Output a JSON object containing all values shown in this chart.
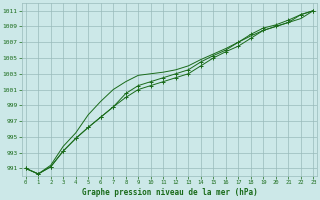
{
  "xlabel": "Graphe pression niveau de la mer (hPa)",
  "background_color": "#cce8e8",
  "grid_color": "#99bbbb",
  "line_color": "#1a6b1a",
  "x": [
    0,
    1,
    2,
    3,
    4,
    5,
    6,
    7,
    8,
    9,
    10,
    11,
    12,
    13,
    14,
    15,
    16,
    17,
    18,
    19,
    20,
    21,
    22,
    23
  ],
  "line1": [
    991.0,
    990.3,
    991.2,
    993.2,
    994.8,
    996.2,
    997.5,
    998.8,
    1000.0,
    1001.0,
    1001.5,
    1002.0,
    1002.5,
    1003.0,
    1004.0,
    1005.0,
    1005.8,
    1006.5,
    1007.5,
    1008.5,
    1009.0,
    1009.5,
    1010.5,
    1011.0
  ],
  "line2": [
    991.0,
    990.3,
    991.2,
    993.2,
    994.8,
    996.2,
    997.5,
    998.8,
    1000.5,
    1001.5,
    1002.0,
    1002.5,
    1003.0,
    1003.5,
    1004.5,
    1005.3,
    1006.0,
    1007.0,
    1008.0,
    1008.8,
    1009.2,
    1009.8,
    1010.5,
    1011.0
  ],
  "line3": [
    991.0,
    990.3,
    991.4,
    993.8,
    995.5,
    997.8,
    999.5,
    1001.0,
    1002.0,
    1002.8,
    1003.0,
    1003.2,
    1003.5,
    1004.0,
    1004.8,
    1005.5,
    1006.2,
    1007.0,
    1007.8,
    1008.5,
    1009.0,
    1009.5,
    1010.0,
    1011.0
  ],
  "ylim": [
    990.0,
    1012.0
  ],
  "yticks": [
    991,
    993,
    995,
    997,
    999,
    1001,
    1003,
    1005,
    1007,
    1009,
    1011
  ],
  "xlim": [
    0,
    23
  ],
  "xticks": [
    0,
    1,
    2,
    3,
    4,
    5,
    6,
    7,
    8,
    9,
    10,
    11,
    12,
    13,
    14,
    15,
    16,
    17,
    18,
    19,
    20,
    21,
    22,
    23
  ]
}
